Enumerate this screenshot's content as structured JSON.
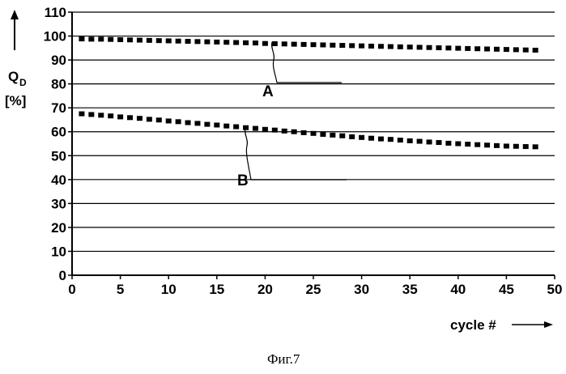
{
  "chart_data": {
    "type": "scatter",
    "ylabel": {
      "main": "Q",
      "sub": "D",
      "unit": "[%]"
    },
    "xlabel": "cycle #",
    "xlim": [
      0,
      50
    ],
    "ylim": [
      0,
      110
    ],
    "xticks": [
      0,
      5,
      10,
      15,
      20,
      25,
      30,
      35,
      40,
      45,
      50
    ],
    "yticks": [
      0,
      10,
      20,
      30,
      40,
      50,
      60,
      70,
      80,
      90,
      100,
      110
    ],
    "grid": "horizontal",
    "series": [
      {
        "name": "A",
        "x": [
          1,
          2,
          3,
          4,
          5,
          6,
          7,
          8,
          9,
          10,
          11,
          12,
          13,
          14,
          15,
          16,
          17,
          18,
          19,
          20,
          21,
          22,
          23,
          24,
          25,
          26,
          27,
          28,
          29,
          30,
          31,
          32,
          33,
          34,
          35,
          36,
          37,
          38,
          39,
          40,
          41,
          42,
          43,
          44,
          45,
          46,
          47,
          48
        ],
        "y": [
          98.8,
          98.7,
          98.7,
          98.6,
          98.5,
          98.4,
          98.3,
          98.2,
          98.1,
          98.0,
          97.9,
          97.8,
          97.7,
          97.6,
          97.5,
          97.4,
          97.3,
          97.2,
          97.1,
          96.9,
          96.8,
          96.7,
          96.6,
          96.5,
          96.4,
          96.3,
          96.2,
          96.1,
          96.0,
          95.9,
          95.8,
          95.7,
          95.6,
          95.5,
          95.4,
          95.3,
          95.2,
          95.1,
          95.0,
          94.9,
          94.8,
          94.7,
          94.6,
          94.5,
          94.4,
          94.3,
          94.2,
          94.1
        ]
      },
      {
        "name": "B",
        "x": [
          1,
          2,
          3,
          4,
          5,
          6,
          7,
          8,
          9,
          10,
          11,
          12,
          13,
          14,
          15,
          16,
          17,
          18,
          19,
          20,
          21,
          22,
          23,
          24,
          25,
          26,
          27,
          28,
          29,
          30,
          31,
          32,
          33,
          34,
          35,
          36,
          37,
          38,
          39,
          40,
          41,
          42,
          43,
          44,
          45,
          46,
          47,
          48
        ],
        "y": [
          67.5,
          67.2,
          66.9,
          66.6,
          66.2,
          65.9,
          65.6,
          65.2,
          64.9,
          64.5,
          64.2,
          63.8,
          63.5,
          63.1,
          62.8,
          62.4,
          62.1,
          61.7,
          61.4,
          61.0,
          60.7,
          60.3,
          60.0,
          59.6,
          59.3,
          58.9,
          58.6,
          58.3,
          57.9,
          57.6,
          57.3,
          57.0,
          56.8,
          56.5,
          56.2,
          56.0,
          55.7,
          55.5,
          55.2,
          55.0,
          54.8,
          54.6,
          54.4,
          54.2,
          54.0,
          53.9,
          53.8,
          53.7
        ]
      }
    ],
    "annotations": [
      {
        "text": "A",
        "series": "A"
      },
      {
        "text": "B",
        "series": "B"
      }
    ]
  },
  "caption": "Фиг.7"
}
